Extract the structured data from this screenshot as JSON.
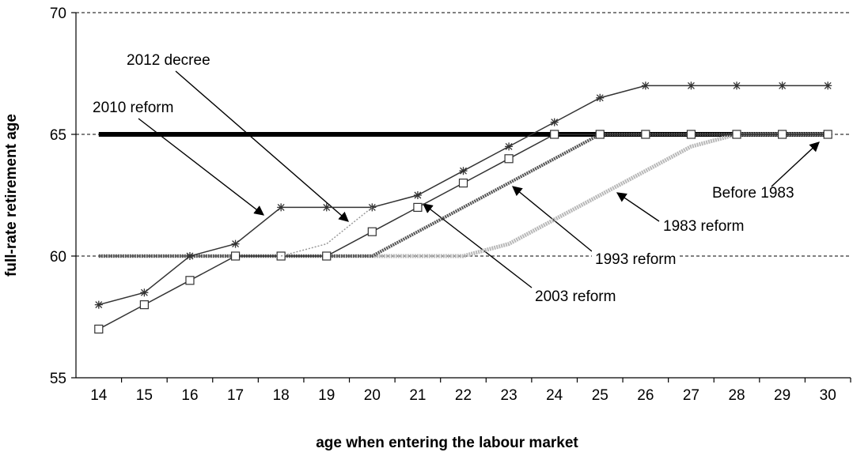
{
  "chart_data": {
    "type": "line",
    "xlabel": "age when entering the labour market",
    "ylabel": "full-rate retirement age",
    "categories": [
      "14",
      "15",
      "16",
      "17",
      "18",
      "19",
      "20",
      "21",
      "22",
      "23",
      "24",
      "25",
      "26",
      "27",
      "28",
      "29",
      "30"
    ],
    "ylim": [
      55,
      70
    ],
    "yticks": [
      55,
      60,
      65,
      70
    ],
    "grid": true,
    "series": [
      {
        "name": "Before 1983",
        "color": "#000000",
        "values": [
          65,
          65,
          65,
          65,
          65,
          65,
          65,
          65,
          65,
          65,
          65,
          65,
          65,
          65,
          65,
          65,
          65
        ]
      },
      {
        "name": "1983 reform",
        "color": "#b8b8b8",
        "values": [
          60,
          60,
          60,
          60,
          60,
          60,
          60,
          60,
          60,
          60.5,
          61.5,
          62.5,
          63.5,
          64.5,
          65,
          65,
          65
        ]
      },
      {
        "name": "1993 reform",
        "color": "#555555",
        "values": [
          60,
          60,
          60,
          60,
          60,
          60,
          60,
          61,
          62,
          63,
          64,
          65,
          65,
          65,
          65,
          65,
          65
        ]
      },
      {
        "name": "2003 reform",
        "color": "#333333",
        "marker": "square",
        "values": [
          57,
          58,
          59,
          60,
          60,
          60,
          61,
          62,
          63,
          64,
          65,
          65,
          65,
          65,
          65,
          65,
          65
        ]
      },
      {
        "name": "2010 reform",
        "color": "#333333",
        "marker": "star",
        "values": [
          58,
          58.5,
          60,
          60.5,
          62,
          62,
          62,
          62.5,
          63.5,
          64.5,
          65.5,
          66.5,
          67,
          67,
          67,
          67,
          67
        ]
      },
      {
        "name": "2012 decree",
        "color": "#999999",
        "values": [
          null,
          null,
          null,
          null,
          60,
          60.5,
          62,
          null,
          null,
          null,
          null,
          null,
          null,
          null,
          null,
          null,
          null
        ]
      }
    ]
  }
}
